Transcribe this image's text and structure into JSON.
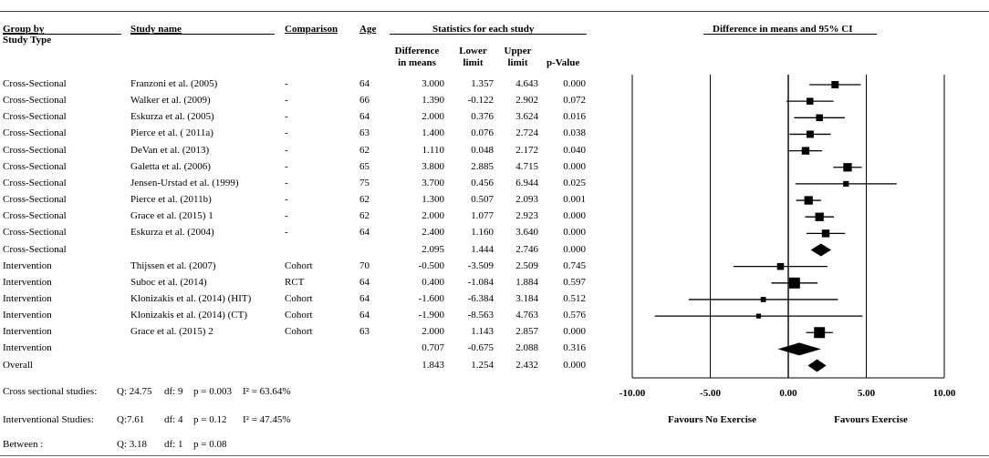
{
  "headers": {
    "group_by": "Group by",
    "study_type": "Study Type",
    "study_name": "Study name",
    "comparison": "Comparison",
    "age": "Age",
    "stats_title": "Statistics for each study",
    "diff_line1": "Difference",
    "diff_line2": "in means",
    "lower_line1": "Lower",
    "lower_line2": "limit",
    "upper_line1": "Upper",
    "upper_line2": "limit",
    "pvalue": "p-Value",
    "plot_title": "Difference in means and 95% CI"
  },
  "rows": [
    {
      "group": "Cross-Sectional",
      "study": "Franzoni et al. (2005)",
      "comparison": "-",
      "age": "64",
      "diff": "3.000",
      "lower": "1.357",
      "upper": "4.643",
      "p": "0.000"
    },
    {
      "group": "Cross-Sectional",
      "study": "Walker et al. (2009)",
      "comparison": "-",
      "age": "66",
      "diff": "1.390",
      "lower": "-0.122",
      "upper": "2.902",
      "p": "0.072"
    },
    {
      "group": "Cross-Sectional",
      "study": "Eskurza et al. (2005)",
      "comparison": "-",
      "age": "64",
      "diff": "2.000",
      "lower": "0.376",
      "upper": "3.624",
      "p": "0.016"
    },
    {
      "group": "Cross-Sectional",
      "study": "Pierce et al. ( 2011a)",
      "comparison": "-",
      "age": "63",
      "diff": "1.400",
      "lower": "0.076",
      "upper": "2.724",
      "p": "0.038"
    },
    {
      "group": "Cross-Sectional",
      "study": "DeVan et al. (2013)",
      "comparison": "-",
      "age": "62",
      "diff": "1.110",
      "lower": "0.048",
      "upper": "2.172",
      "p": "0.040"
    },
    {
      "group": "Cross-Sectional",
      "study": "Galetta et al. (2006)",
      "comparison": "-",
      "age": "65",
      "diff": "3.800",
      "lower": "2.885",
      "upper": "4.715",
      "p": "0.000"
    },
    {
      "group": "Cross-Sectional",
      "study": "Jensen-Urstad et al. (1999)",
      "comparison": "-",
      "age": "75",
      "diff": "3.700",
      "lower": "0.456",
      "upper": "6.944",
      "p": "0.025"
    },
    {
      "group": "Cross-Sectional",
      "study": "Pierce et al. (2011b)",
      "comparison": "-",
      "age": "62",
      "diff": "1.300",
      "lower": "0.507",
      "upper": "2.093",
      "p": "0.001"
    },
    {
      "group": "Cross-Sectional",
      "study": "Grace et al. (2015) 1",
      "comparison": "-",
      "age": "62",
      "diff": "2.000",
      "lower": "1.077",
      "upper": "2.923",
      "p": "0.000"
    },
    {
      "group": "Cross-Sectional",
      "study": "Eskurza et al. (2004)",
      "comparison": "-",
      "age": "64",
      "diff": "2.400",
      "lower": "1.160",
      "upper": "3.640",
      "p": "0.000"
    },
    {
      "group": "Cross-Sectional",
      "study": "",
      "comparison": "",
      "age": "",
      "diff": "2.095",
      "lower": "1.444",
      "upper": "2.746",
      "p": "0.000"
    },
    {
      "group": "Intervention",
      "study": "Thijssen et al. (2007)",
      "comparison": "Cohort",
      "age": "70",
      "diff": "-0.500",
      "lower": "-3.509",
      "upper": "2.509",
      "p": "0.745"
    },
    {
      "group": "Intervention",
      "study": "Suboc et al. (2014)",
      "comparison": "RCT",
      "age": "64",
      "diff": "0.400",
      "lower": "-1.084",
      "upper": "1.884",
      "p": "0.597"
    },
    {
      "group": "Intervention",
      "study": "Klonizakis et al. (2014) (HIT)",
      "comparison": "Cohort",
      "age": "64",
      "diff": "-1.600",
      "lower": "-6.384",
      "upper": "3.184",
      "p": "0.512"
    },
    {
      "group": "Intervention",
      "study": "Klonizakis et al. (2014) (CT)",
      "comparison": "Cohort",
      "age": "64",
      "diff": "-1.900",
      "lower": "-8.563",
      "upper": "4.763",
      "p": "0.576"
    },
    {
      "group": "Intervention",
      "study": "Grace et al. (2015) 2",
      "comparison": "Cohort",
      "age": "63",
      "diff": "2.000",
      "lower": "1.143",
      "upper": "2.857",
      "p": "0.000"
    },
    {
      "group": "Intervention",
      "study": "",
      "comparison": "",
      "age": "",
      "diff": "0.707",
      "lower": "-0.675",
      "upper": "2.088",
      "p": "0.316"
    },
    {
      "group": "Overall",
      "study": "",
      "comparison": "",
      "age": "",
      "diff": "1.843",
      "lower": "1.254",
      "upper": "2.432",
      "p": "0.000"
    }
  ],
  "heterogeneity": [
    {
      "label": "Cross sectional studies:",
      "q": "Q: 24.75",
      "df": "df: 9",
      "p": "p = 0.003",
      "i2": "I² = 63.64%"
    },
    {
      "label": "Interventional Studies:",
      "q": "Q:7.61",
      "df": "df: 4",
      "p": "p = 0.12",
      "i2": "I² = 47.45%"
    },
    {
      "label": "Between :",
      "q": "Q: 3.18",
      "df": "df: 1",
      "p": "p = 0.08",
      "i2": ""
    }
  ],
  "axis": {
    "ticks": [
      -10,
      -5,
      0,
      5,
      10
    ],
    "tick_labels": [
      "-10.00",
      "-5.00",
      "0.00",
      "5.00",
      "10.00"
    ],
    "left_label": "Favours No Exercise",
    "right_label": "Favours Exercise"
  },
  "chart_data": {
    "type": "forest",
    "title": "Difference in means and 95% CI",
    "xlabel": "",
    "xlim": [
      -10,
      10
    ],
    "reference_line": 0,
    "categories": [
      "Franzoni et al. (2005)",
      "Walker et al. (2009)",
      "Eskurza et al. (2005)",
      "Pierce et al. ( 2011a)",
      "DeVan et al. (2013)",
      "Galetta et al. (2006)",
      "Jensen-Urstad et al. (1999)",
      "Pierce et al. (2011b)",
      "Grace et al. (2015) 1",
      "Eskurza et al. (2004)",
      "Cross-Sectional",
      "Thijssen et al. (2007)",
      "Suboc et al. (2014)",
      "Klonizakis et al. (2014) (HIT)",
      "Klonizakis et al. (2014) (CT)",
      "Grace et al. (2015) 2",
      "Intervention",
      "Overall"
    ],
    "estimates": [
      3.0,
      1.39,
      2.0,
      1.4,
      1.11,
      3.8,
      3.7,
      1.3,
      2.0,
      2.4,
      2.095,
      -0.5,
      0.4,
      -1.6,
      -1.9,
      2.0,
      0.707,
      1.843
    ],
    "lower": [
      1.357,
      -0.122,
      0.376,
      0.076,
      0.048,
      2.885,
      0.456,
      0.507,
      1.077,
      1.16,
      1.444,
      -3.509,
      -1.084,
      -6.384,
      -8.563,
      1.143,
      -0.675,
      1.254
    ],
    "upper": [
      4.643,
      2.902,
      3.624,
      2.724,
      2.172,
      4.715,
      6.944,
      2.093,
      2.923,
      3.64,
      2.746,
      2.509,
      1.884,
      3.184,
      4.763,
      2.857,
      2.088,
      2.432
    ],
    "is_summary": [
      false,
      false,
      false,
      false,
      false,
      false,
      false,
      false,
      false,
      false,
      true,
      false,
      false,
      false,
      false,
      false,
      true,
      true
    ],
    "weight": [
      0.55,
      0.5,
      0.5,
      0.55,
      0.6,
      0.7,
      0.35,
      0.7,
      0.7,
      0.6,
      1,
      0.5,
      1.0,
      0.3,
      0.25,
      1.0,
      1,
      1
    ]
  }
}
